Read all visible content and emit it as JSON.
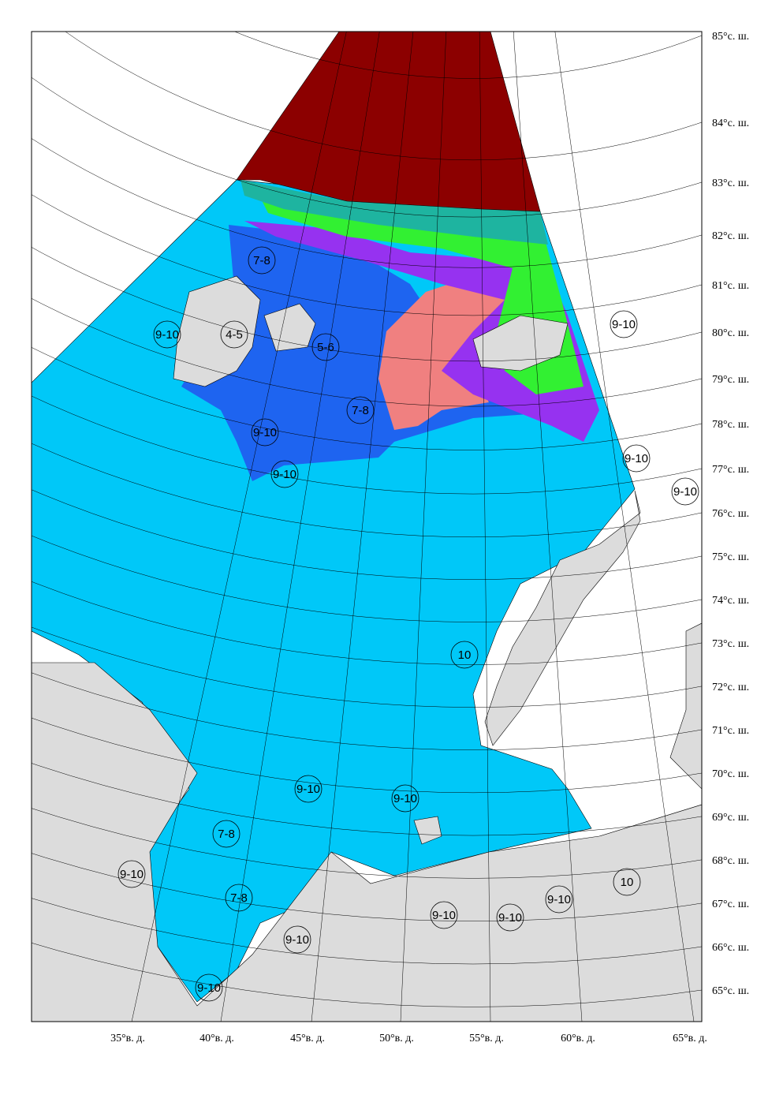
{
  "map": {
    "lat_labels": [
      "85°с. ш.",
      "84°с. ш.",
      "83°с. ш.",
      "82°с. ш.",
      "81°с. ш.",
      "80°с. ш.",
      "79°с. ш.",
      "78°с. ш.",
      "77°с. ш.",
      "76°с. ш.",
      "75°с. ш.",
      "74°с. ш.",
      "73°с. ш.",
      "72°с. ш.",
      "71°с. ш.",
      "70°с. ш.",
      "69°с. ш.",
      "68°с. ш.",
      "67°с. ш.",
      "66°с. ш.",
      "65°с. ш."
    ],
    "lon_labels": [
      "35°в. д.",
      "40°в. д.",
      "45°в. д.",
      "50°в. д.",
      "55°в. д.",
      "60°в. д.",
      "65°в. д."
    ],
    "ice_labels": [
      "7-8",
      "4-5",
      "5-6",
      "7-8",
      "9-10",
      "9-10",
      "9-10",
      "9-10",
      "9-10",
      "9-10",
      "10",
      "9-10",
      "9-10",
      "7-8",
      "7-8",
      "9-10",
      "9-10",
      "9-10",
      "9-10",
      "9-10",
      "10",
      "9-10"
    ]
  }
}
